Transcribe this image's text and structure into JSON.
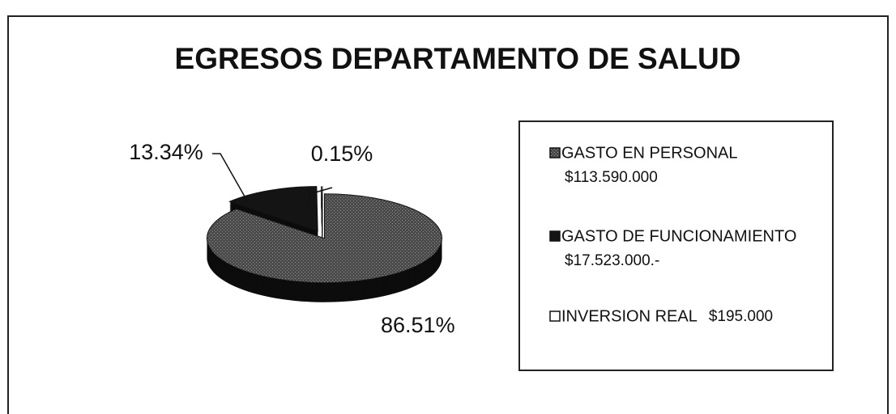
{
  "chart_data": {
    "type": "pie",
    "title": "EGRESOS DEPARTAMENTO DE SALUD",
    "categories": [
      "GASTO EN PERSONAL",
      "GASTO DE FUNCIONAMIENTO",
      "INVERSION REAL"
    ],
    "amount_labels": [
      "$113.590.000",
      "$17.523.000.-",
      "$195.000"
    ],
    "values": [
      86.51,
      13.34,
      0.15
    ],
    "value_labels": [
      "86.51%",
      "13.34%",
      "0.15%"
    ],
    "colors": [
      "#3c3c3c",
      "#141414",
      "#ffffff"
    ],
    "legend": "right"
  }
}
